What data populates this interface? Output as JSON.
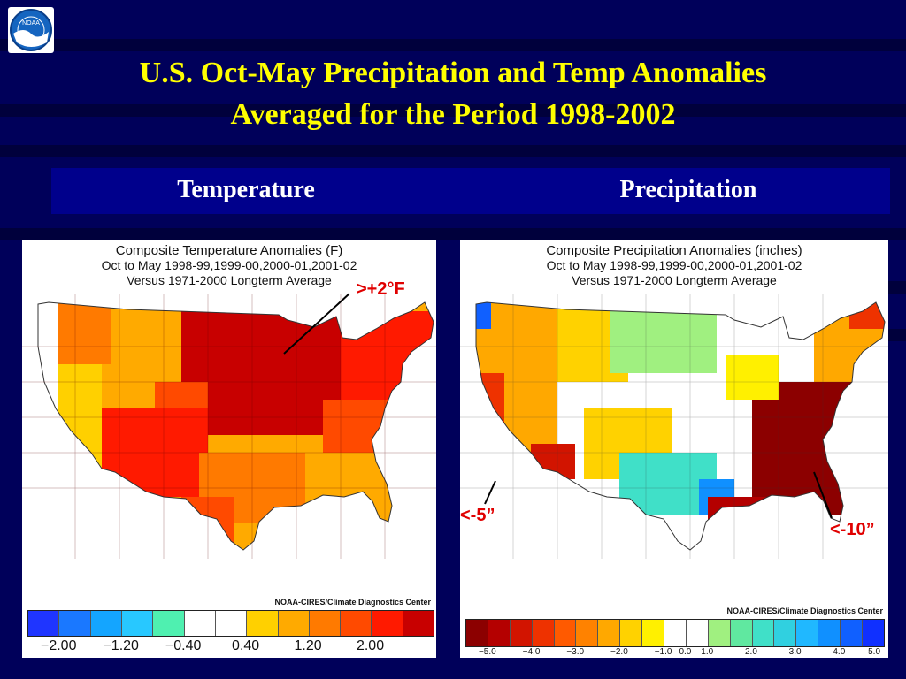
{
  "header": {
    "title_line1": "U.S. Oct-May Precipitation and Temp Anomalies",
    "title_line2": "Averaged for the Period 1998-2002"
  },
  "columns": {
    "left": "Temperature",
    "right": "Precipitation"
  },
  "temp_map": {
    "title": "Composite Temperature Anomalies (F)",
    "line2": "Oct to May   1998-99,1999-00,2000-01,2001-02",
    "line3": "Versus 1971-2000 Longterm Average",
    "credit": "NOAA-CIRES/Climate Diagnostics Center",
    "callout": ">+2°F",
    "colorbar": [
      "#1f35ff",
      "#1a78ff",
      "#14a5ff",
      "#28c8ff",
      "#4ff0b0",
      "#ffffff",
      "#ffffff",
      "#ffd000",
      "#ffaa00",
      "#ff7a00",
      "#ff4a00",
      "#ff1a00",
      "#c80000"
    ],
    "ticks": [
      "−2.00",
      "−1.20",
      "−0.40",
      "0.40",
      "1.20",
      "2.00"
    ]
  },
  "precip_map": {
    "title": "Composite Precipitation Anomalies (inches)",
    "line2": "Oct to May   1998-99,1999-00,2000-01,2001-02",
    "line3": "Versus 1971-2000 Longterm Average",
    "credit": "NOAA-CIRES/Climate Diagnostics Center",
    "callout_west": "<-5”",
    "callout_east": "<-10”",
    "colorbar": [
      "#8c0000",
      "#b40000",
      "#d21400",
      "#ee3200",
      "#ff5a00",
      "#ff8200",
      "#ffa800",
      "#ffd200",
      "#fff000",
      "#ffffff",
      "#ffffff",
      "#a0f080",
      "#60e8a0",
      "#40e0c8",
      "#30d0e0",
      "#20b8ff",
      "#1090ff",
      "#1060ff",
      "#1030ff"
    ],
    "ticks": [
      "−5.0",
      "−4.0",
      "−3.0",
      "−2.0",
      "−1.0",
      "0.0",
      "1.0",
      "2.0",
      "3.0",
      "4.0",
      "5.0"
    ]
  }
}
